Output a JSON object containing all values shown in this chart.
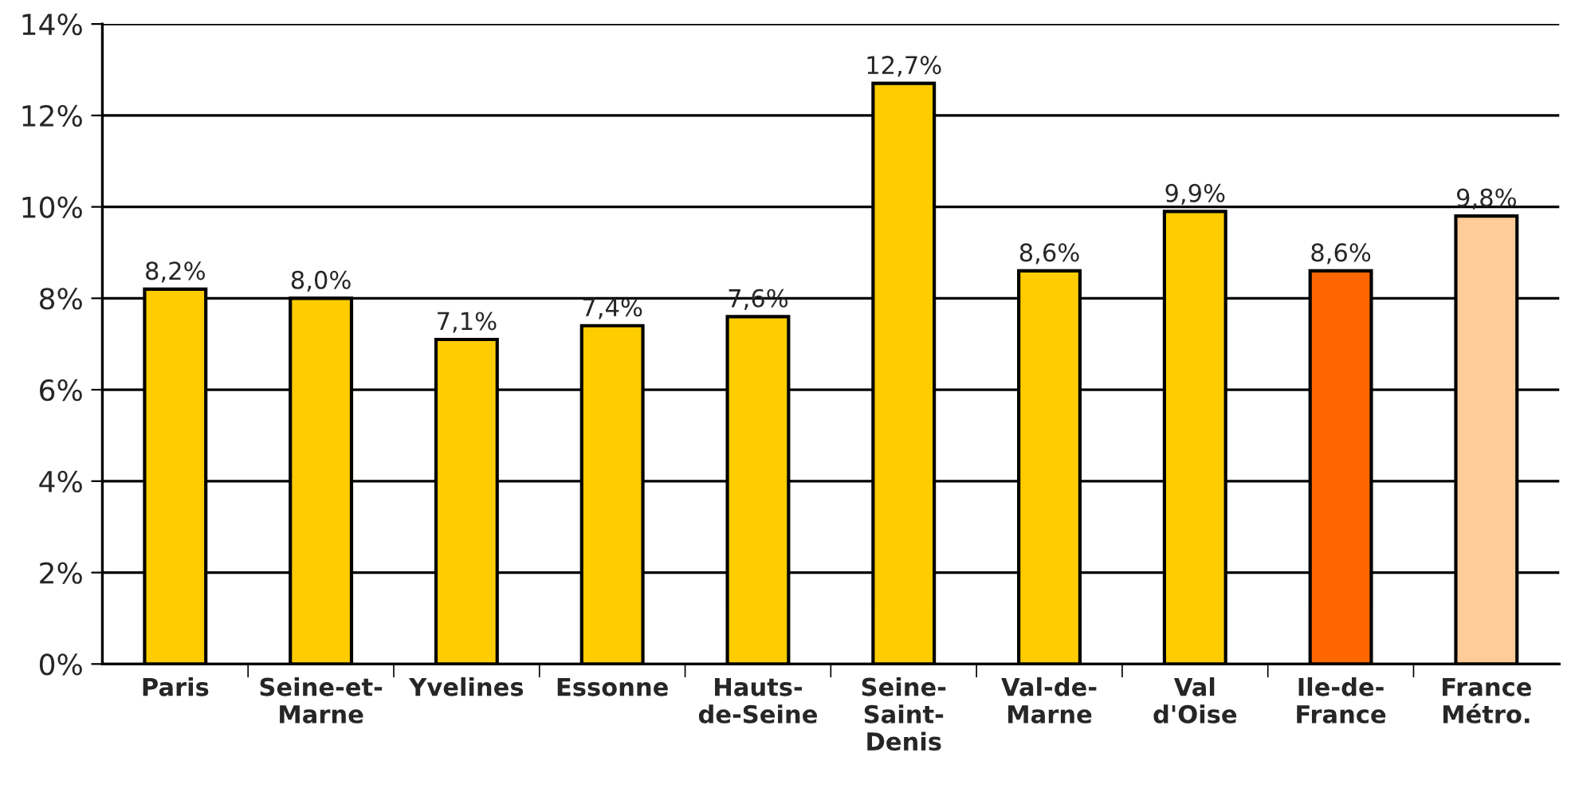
{
  "chart_data": {
    "type": "bar",
    "categories": [
      "Paris",
      "Seine-et-\nMarne",
      "Yvelines",
      "Essonne",
      "Hauts-\nde-Seine",
      "Seine-\nSaint-\nDenis",
      "Val-de-\nMarne",
      "Val\nd'Oise",
      "Ile-de-\nFrance",
      "France\nMétro."
    ],
    "values": [
      8.2,
      8.0,
      7.1,
      7.4,
      7.6,
      12.7,
      8.6,
      9.9,
      8.6,
      9.8
    ],
    "value_labels": [
      "8,2%",
      "8,0%",
      "7,1%",
      "7,4%",
      "7,6%",
      "12,7%",
      "8,6%",
      "9,9%",
      "8,6%",
      "9,8%"
    ],
    "colors": [
      "#ffcc00",
      "#ffcc00",
      "#ffcc00",
      "#ffcc00",
      "#ffcc00",
      "#ffcc00",
      "#ffcc00",
      "#ffcc00",
      "#ff6600",
      "#ffcc99"
    ],
    "ylim": [
      0,
      14
    ],
    "yticks": [
      {
        "value": 0,
        "label": "0%"
      },
      {
        "value": 2,
        "label": "2%"
      },
      {
        "value": 4,
        "label": "4%"
      },
      {
        "value": 6,
        "label": "6%"
      },
      {
        "value": 8,
        "label": "8%"
      },
      {
        "value": 10,
        "label": "10%"
      },
      {
        "value": 12,
        "label": "12%"
      },
      {
        "value": 14,
        "label": "14%"
      }
    ],
    "grid": "y",
    "legend": false
  }
}
